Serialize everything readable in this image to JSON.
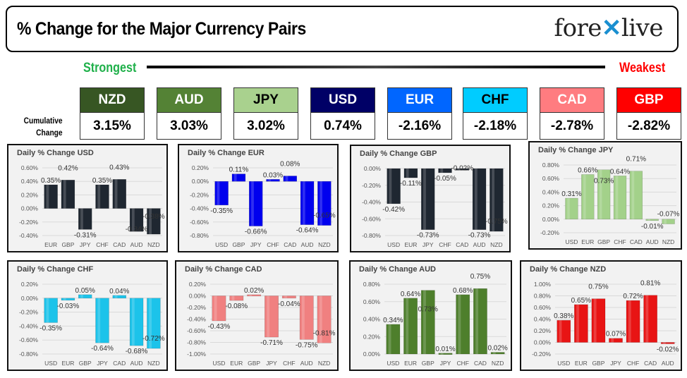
{
  "header": {
    "title": "% Change for the Major Currency Pairs",
    "logo_text": "forexlive"
  },
  "scale": {
    "strongest": "Strongest",
    "weakest": "Weakest"
  },
  "cumulative_label": "Cumulative Change",
  "ranking": [
    {
      "ccy": "NZD",
      "value": "3.15%",
      "color": "#375623"
    },
    {
      "ccy": "AUD",
      "value": "3.03%",
      "color": "#548235"
    },
    {
      "ccy": "JPY",
      "value": "3.02%",
      "color": "#a9d18e",
      "text": "#000"
    },
    {
      "ccy": "USD",
      "value": "0.74%",
      "color": "#000066"
    },
    {
      "ccy": "EUR",
      "value": "-2.16%",
      "color": "#0066ff"
    },
    {
      "ccy": "CHF",
      "value": "-2.18%",
      "color": "#00ccff",
      "text": "#000"
    },
    {
      "ccy": "CAD",
      "value": "-2.78%",
      "color": "#ff7c80"
    },
    {
      "ccy": "GBP",
      "value": "-2.82%",
      "color": "#ff0000"
    }
  ],
  "chart_data": [
    {
      "type": "bar",
      "title": "Daily % Change USD",
      "categories": [
        "EUR",
        "GBP",
        "JPY",
        "CHF",
        "CAD",
        "AUD",
        "NZD"
      ],
      "values": [
        0.35,
        0.42,
        -0.31,
        0.35,
        0.43,
        -0.34,
        -0.38
      ],
      "ylim": [
        -0.4,
        0.6
      ],
      "color": "#1f2731"
    },
    {
      "type": "bar",
      "title": "Daily % Change EUR",
      "categories": [
        "USD",
        "GBP",
        "JPY",
        "CHF",
        "CAD",
        "AUD",
        "NZD"
      ],
      "values": [
        -0.35,
        0.11,
        -0.66,
        0.03,
        0.08,
        -0.64,
        -0.65
      ],
      "ylim": [
        -0.8,
        0.2
      ],
      "color": "#0000ee"
    },
    {
      "type": "bar",
      "title": "Daily % Change GBP",
      "categories": [
        "USD",
        "EUR",
        "JPY",
        "CHF",
        "CAD",
        "AUD",
        "NZD"
      ],
      "values": [
        -0.42,
        -0.11,
        -0.73,
        -0.05,
        -0.02,
        -0.73,
        -0.75
      ],
      "ylim": [
        -0.8,
        0.0
      ],
      "color": "#1f2731"
    },
    {
      "type": "bar",
      "title": "Daily % Change JPY",
      "categories": [
        "USD",
        "EUR",
        "GBP",
        "CHF",
        "CAD",
        "AUD",
        "NZD"
      ],
      "values": [
        0.31,
        0.66,
        0.73,
        0.64,
        0.71,
        -0.01,
        -0.07
      ],
      "ylim": [
        -0.2,
        0.8
      ],
      "color": "#a3d18a"
    },
    {
      "type": "bar",
      "title": "Daily % Change CHF",
      "categories": [
        "USD",
        "EUR",
        "GBP",
        "JPY",
        "CAD",
        "AUD",
        "NZD"
      ],
      "values": [
        -0.35,
        -0.03,
        0.05,
        -0.64,
        0.04,
        -0.68,
        -0.72
      ],
      "ylim": [
        -0.8,
        0.2
      ],
      "color": "#1cc3ea"
    },
    {
      "type": "bar",
      "title": "Daily % Change CAD",
      "categories": [
        "USD",
        "EUR",
        "GBP",
        "JPY",
        "CHF",
        "AUD",
        "NZD"
      ],
      "values": [
        -0.43,
        -0.08,
        0.02,
        -0.71,
        -0.04,
        -0.75,
        -0.81
      ],
      "ylim": [
        -1.0,
        0.2
      ],
      "color": "#f08080"
    },
    {
      "type": "bar",
      "title": "Daily % Change AUD",
      "categories": [
        "USD",
        "EUR",
        "GBP",
        "JPY",
        "CHF",
        "CAD",
        "NZD"
      ],
      "values": [
        0.34,
        0.64,
        0.73,
        0.01,
        0.68,
        0.75,
        0.02
      ],
      "ylim": [
        0.0,
        0.8
      ],
      "color": "#4e7f2c"
    },
    {
      "type": "bar",
      "title": "Daily % Change NZD",
      "categories": [
        "USD",
        "EUR",
        "GBP",
        "JPY",
        "CHF",
        "CAD",
        "AUD"
      ],
      "values": [
        0.38,
        0.65,
        0.75,
        0.07,
        0.72,
        0.81,
        -0.02
      ],
      "ylim": [
        -0.2,
        1.0
      ],
      "color": "#e81414"
    }
  ]
}
